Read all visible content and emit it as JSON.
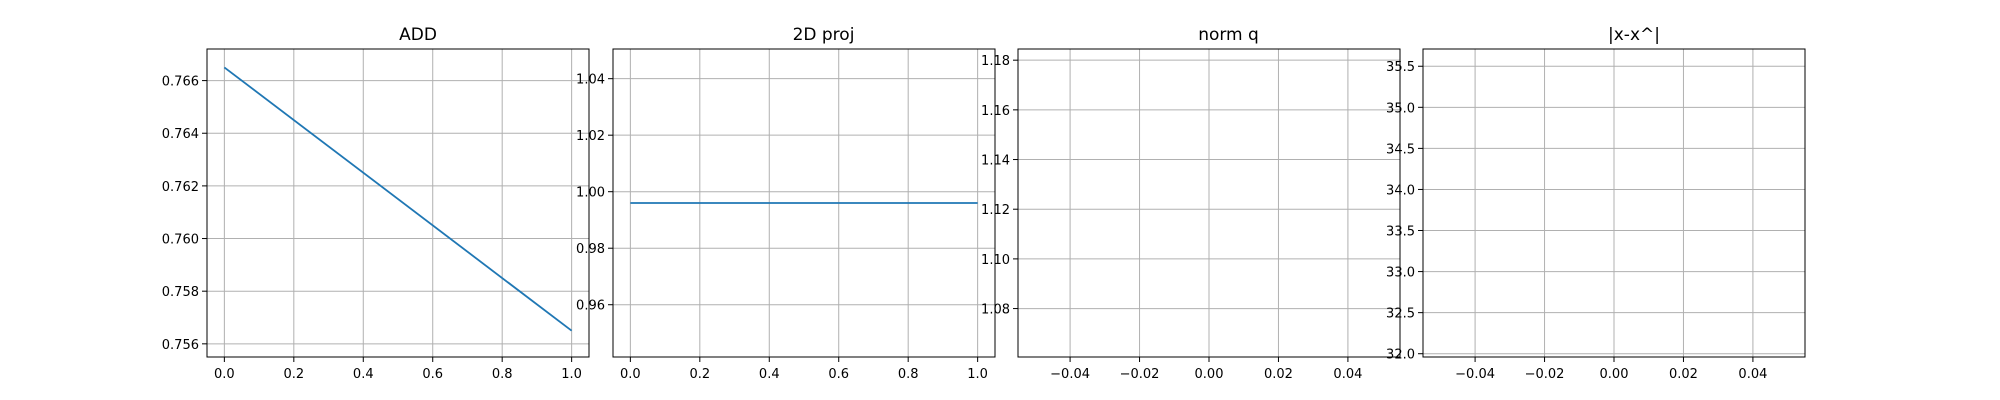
{
  "chart_data": [
    {
      "type": "line",
      "title": "ADD",
      "xlim": [
        -0.05,
        1.05
      ],
      "ylim": [
        0.7555,
        0.7672
      ],
      "xticks": [
        0.0,
        0.2,
        0.4,
        0.6,
        0.8,
        1.0
      ],
      "xtick_labels": [
        "0.0",
        "0.2",
        "0.4",
        "0.6",
        "0.8",
        "1.0"
      ],
      "yticks": [
        0.756,
        0.758,
        0.76,
        0.762,
        0.764,
        0.766
      ],
      "ytick_labels": [
        "0.756",
        "0.758",
        "0.760",
        "0.762",
        "0.764",
        "0.766"
      ],
      "grid": true,
      "series": [
        {
          "x": [
            0.0,
            1.0
          ],
          "y": [
            0.7665,
            0.7565
          ],
          "color": "#1f77b4"
        }
      ]
    },
    {
      "type": "line",
      "title": "2D proj",
      "xlim": [
        -0.05,
        1.05
      ],
      "ylim": [
        0.9415,
        1.0505
      ],
      "xticks": [
        0.0,
        0.2,
        0.4,
        0.6,
        0.8,
        1.0
      ],
      "xtick_labels": [
        "0.0",
        "0.2",
        "0.4",
        "0.6",
        "0.8",
        "1.0"
      ],
      "yticks": [
        0.96,
        0.98,
        1.0,
        1.02,
        1.04
      ],
      "ytick_labels": [
        "0.96",
        "0.98",
        "1.00",
        "1.02",
        "1.04"
      ],
      "grid": true,
      "series": [
        {
          "x": [
            0.0,
            1.0
          ],
          "y": [
            0.996,
            0.996
          ],
          "color": "#1f77b4"
        }
      ]
    },
    {
      "type": "line",
      "title": "norm q",
      "xlim": [
        -0.055,
        0.055
      ],
      "ylim": [
        1.0605,
        1.1845
      ],
      "xticks": [
        -0.04,
        -0.02,
        0.0,
        0.02,
        0.04
      ],
      "xtick_labels": [
        "−0.04",
        "−0.02",
        "0.00",
        "0.02",
        "0.04"
      ],
      "yticks": [
        1.08,
        1.1,
        1.12,
        1.14,
        1.16,
        1.18
      ],
      "ytick_labels": [
        "1.08",
        "1.10",
        "1.12",
        "1.14",
        "1.16",
        "1.18"
      ],
      "grid": true,
      "series": []
    },
    {
      "type": "line",
      "title": "|x-x^|",
      "xlim": [
        -0.055,
        0.055
      ],
      "ylim": [
        31.96,
        35.71
      ],
      "xticks": [
        -0.04,
        -0.02,
        0.0,
        0.02,
        0.04
      ],
      "xtick_labels": [
        "−0.04",
        "−0.02",
        "0.00",
        "0.02",
        "0.04"
      ],
      "yticks": [
        32.0,
        32.5,
        33.0,
        33.5,
        34.0,
        34.5,
        35.0,
        35.5
      ],
      "ytick_labels": [
        "32.0",
        "32.5",
        "33.0",
        "33.5",
        "34.0",
        "34.5",
        "35.0",
        "35.5"
      ],
      "grid": true,
      "series": []
    }
  ]
}
